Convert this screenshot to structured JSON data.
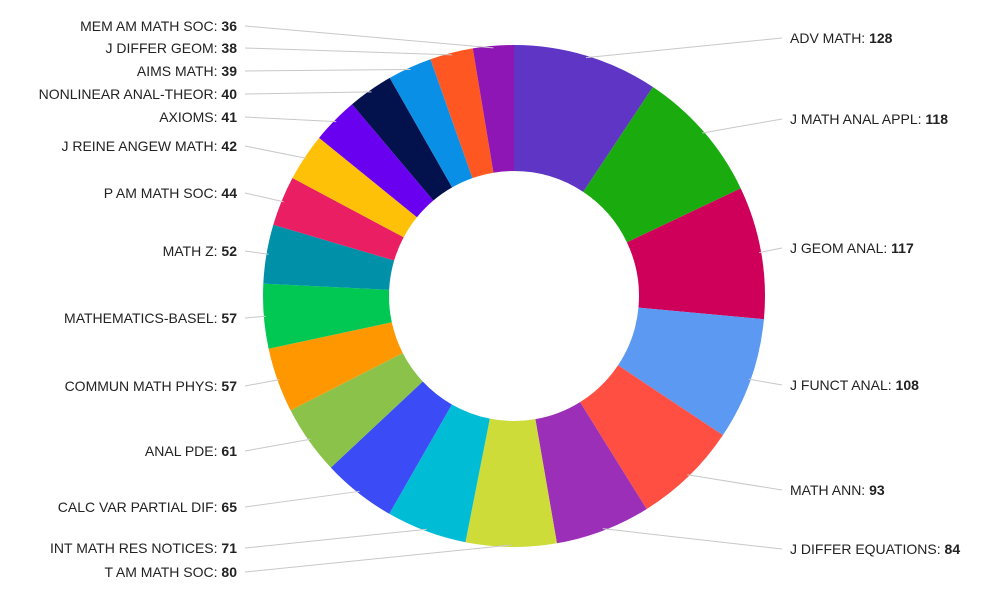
{
  "chart_data": {
    "type": "pie",
    "donut": true,
    "title": "",
    "categories": [
      "ADV MATH",
      "J MATH ANAL APPL",
      "J GEOM ANAL",
      "J FUNCT ANAL",
      "MATH ANN",
      "J DIFFER EQUATIONS",
      "T AM MATH SOC",
      "INT MATH RES NOTICES",
      "CALC VAR PARTIAL DIF",
      "ANAL PDE",
      "COMMUN MATH PHYS",
      "MATHEMATICS-BASEL",
      "MATH Z",
      "P AM MATH SOC",
      "J REINE ANGEW MATH",
      "AXIOMS",
      "NONLINEAR ANAL-THEOR",
      "AIMS MATH",
      "J DIFFER GEOM",
      "MEM AM MATH SOC"
    ],
    "values": [
      128,
      118,
      117,
      108,
      93,
      84,
      80,
      71,
      65,
      61,
      57,
      57,
      52,
      44,
      42,
      41,
      40,
      39,
      38,
      36
    ],
    "colors": [
      "#5e35c4",
      "#1aab0f",
      "#cf0059",
      "#5b99f2",
      "#ff4f42",
      "#9b2fb8",
      "#cddc39",
      "#00bcd4",
      "#3b4cf6",
      "#8bc34a",
      "#ff9800",
      "#00c853",
      "#0091a8",
      "#e91e63",
      "#ffc107",
      "#6a00f0",
      "#03124d",
      "#0a8fe6",
      "#ff5722",
      "#8e16b4"
    ],
    "legend": "none",
    "label_separator": ": "
  }
}
